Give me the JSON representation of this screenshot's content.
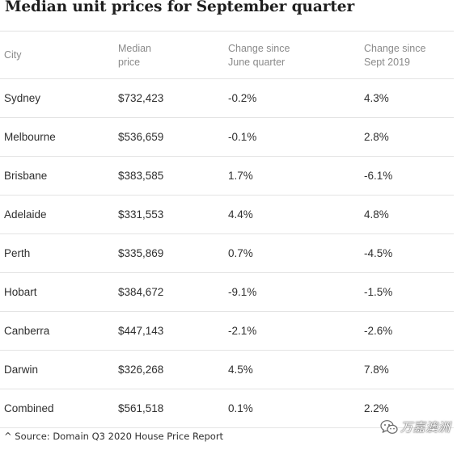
{
  "title": "Median unit prices for September quarter",
  "columns": [
    [
      "City"
    ],
    [
      "Median",
      "price"
    ],
    [
      "Change since",
      "June quarter"
    ],
    [
      "Change since",
      "Sept 2019"
    ]
  ],
  "rows": [
    [
      "Sydney",
      "$732,423",
      "-0.2%",
      "4.3%"
    ],
    [
      "Melbourne",
      "$536,659",
      "-0.1%",
      "2.8%"
    ],
    [
      "Brisbane",
      "$383,585",
      "1.7%",
      "-6.1%"
    ],
    [
      "Adelaide",
      "$331,553",
      "4.4%",
      "4.8%"
    ],
    [
      "Perth",
      "$335,869",
      "0.7%",
      "-4.5%"
    ],
    [
      "Hobart",
      "$384,672",
      "-9.1%",
      "-1.5%"
    ],
    [
      "Canberra",
      "$447,143",
      "-2.1%",
      "-2.6%"
    ],
    [
      "Darwin",
      "$326,268",
      "4.5%",
      "7.8%"
    ],
    [
      "Combined",
      "$561,518",
      "0.1%",
      "2.2%"
    ]
  ],
  "source": "^ Source: Domain Q3 2020 House Price Report",
  "watermark": {
    "text": "万嘉澳洲",
    "icon": "wechat-icon"
  }
}
